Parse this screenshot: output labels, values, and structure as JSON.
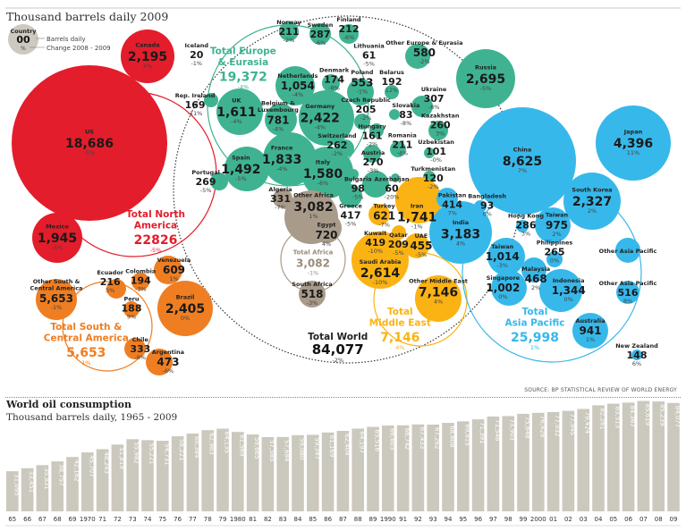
{
  "header": {
    "title": "Thousand barrels daily 2009"
  },
  "legend": {
    "country": "Country",
    "value": "00",
    "change": "%",
    "value_label": "Barrels daily",
    "change_label": "Change 2008 - 2009"
  },
  "colors": {
    "north_america": "#e31d2b",
    "south_america": "#ef7e22",
    "europe": "#3fb391",
    "africa": "#a99b89",
    "middle_east": "#fbb313",
    "asia_pacific": "#37b8ea",
    "legend": "#ccc9c0",
    "bars": "#cbc8bd"
  },
  "world": {
    "label": "Total World",
    "value": "84,077",
    "change": "-2%"
  },
  "regions": [
    {
      "key": "north_america",
      "label": "Total North America",
      "value": "22826",
      "change": "-5%"
    },
    {
      "key": "south_america",
      "label": "Total South & Central America",
      "value": "5,653",
      "change": "1%"
    },
    {
      "key": "europe",
      "label": "Total Europe & Eurasia",
      "value": "19,372",
      "change": "-4%"
    },
    {
      "key": "africa",
      "label": "Total Africa",
      "value": "3,082",
      "change": "-1%"
    },
    {
      "key": "middle_east",
      "label": "Total Middle East",
      "value": "7,146",
      "change": "4%"
    },
    {
      "key": "asia_pacific",
      "label": "Total Asia Pacific",
      "value": "25,998",
      "change": "1%"
    }
  ],
  "countries": [
    {
      "name": "US",
      "value": "18,686",
      "change": "-5%",
      "region": "north_america"
    },
    {
      "name": "Canada",
      "value": "2,195",
      "change": "4%",
      "region": "north_america"
    },
    {
      "name": "Mexico",
      "value": "1,945",
      "change": "-5%",
      "region": "north_america"
    },
    {
      "name": "Other South & Central America",
      "value": "5,653",
      "change": "-1%",
      "region": "south_america"
    },
    {
      "name": "Venezuela",
      "value": "609",
      "change": "1%",
      "region": "south_america"
    },
    {
      "name": "Colombia",
      "value": "194",
      "change": "-3%",
      "region": "south_america"
    },
    {
      "name": "Ecuador",
      "value": "216",
      "change": "5%",
      "region": "south_america"
    },
    {
      "name": "Peru",
      "value": "188",
      "change": "9%",
      "region": "south_america"
    },
    {
      "name": "Brazil",
      "value": "2,405",
      "change": "0%",
      "region": "south_america"
    },
    {
      "name": "Chile",
      "value": "333",
      "change": "-8%",
      "region": "south_america"
    },
    {
      "name": "Argentina",
      "value": "473",
      "change": "-6%",
      "region": "south_america"
    },
    {
      "name": "Iceland",
      "value": "20",
      "change": "-1%",
      "region": "europe"
    },
    {
      "name": "Rep. Ireland",
      "value": "169",
      "change": "-11%",
      "region": "europe"
    },
    {
      "name": "Norway",
      "value": "211",
      "change": "-2%",
      "region": "europe"
    },
    {
      "name": "Sweden",
      "value": "287",
      "change": "-6%",
      "region": "europe"
    },
    {
      "name": "Finland",
      "value": "212",
      "change": "-6%",
      "region": "europe"
    },
    {
      "name": "Netherlands",
      "value": "1,054",
      "change": "-4%",
      "region": "europe"
    },
    {
      "name": "Denmark",
      "value": "174",
      "change": "-8%",
      "region": "europe"
    },
    {
      "name": "UK",
      "value": "1,611",
      "change": "-4%",
      "region": "europe"
    },
    {
      "name": "Belgium & Luxembourg",
      "value": "781",
      "change": "-4%",
      "region": "europe"
    },
    {
      "name": "Germany",
      "value": "2,422",
      "change": "-4%",
      "region": "europe"
    },
    {
      "name": "Poland",
      "value": "553",
      "change": "-1%",
      "region": "europe"
    },
    {
      "name": "Czech Republic",
      "value": "205",
      "change": "-2%",
      "region": "europe"
    },
    {
      "name": "Hungary",
      "value": "161",
      "change": "-2%",
      "region": "europe"
    },
    {
      "name": "Switzerland",
      "value": "262",
      "change": "-2%",
      "region": "europe"
    },
    {
      "name": "France",
      "value": "1,833",
      "change": "-4%",
      "region": "europe"
    },
    {
      "name": "Spain",
      "value": "1,492",
      "change": "-5%",
      "region": "europe"
    },
    {
      "name": "Italy",
      "value": "1,580",
      "change": "-6%",
      "region": "europe"
    },
    {
      "name": "Portugal",
      "value": "269",
      "change": "-5%",
      "region": "europe"
    },
    {
      "name": "Lithuania",
      "value": "61",
      "change": "-5%",
      "region": "europe"
    },
    {
      "name": "Other Europe & Eurasia",
      "value": "580",
      "change": "-2%",
      "region": "europe"
    },
    {
      "name": "Belarus",
      "value": "192",
      "change": "12%",
      "region": "europe"
    },
    {
      "name": "Slovakia",
      "value": "83",
      "change": "-8%",
      "region": "europe"
    },
    {
      "name": "Ukraine",
      "value": "307",
      "change": "-8%",
      "region": "europe"
    },
    {
      "name": "Kazakhstan",
      "value": "260",
      "change": "3%",
      "region": "europe"
    },
    {
      "name": "Uzbekistan",
      "value": "101",
      "change": "-0%",
      "region": "europe"
    },
    {
      "name": "Turkmenistan",
      "value": "120",
      "change": "-2%",
      "region": "europe"
    },
    {
      "name": "Romania",
      "value": "211",
      "change": "-4%",
      "region": "europe"
    },
    {
      "name": "Austria",
      "value": "270",
      "change": "-3%",
      "region": "europe"
    },
    {
      "name": "Bulgaria",
      "value": "98",
      "change": "-5%",
      "region": "europe"
    },
    {
      "name": "Azerbaijan",
      "value": "60",
      "change": "-20%",
      "region": "europe"
    },
    {
      "name": "Turkey",
      "value": "621",
      "change": "-7%",
      "region": "europe"
    },
    {
      "name": "Greece",
      "value": "417",
      "change": "-5%",
      "region": "europe"
    },
    {
      "name": "Russia",
      "value": "2,695",
      "change": "-5%",
      "region": "europe"
    },
    {
      "name": "Algeria",
      "value": "331",
      "change": "-7%",
      "region": "africa"
    },
    {
      "name": "Other Africa",
      "value": "3,082",
      "change": "1%",
      "region": "africa"
    },
    {
      "name": "Egypt",
      "value": "720",
      "change": "4%",
      "region": "africa"
    },
    {
      "name": "South Africa",
      "value": "518",
      "change": "-3%",
      "region": "africa"
    },
    {
      "name": "Iran",
      "value": "1,741",
      "change": "-1%",
      "region": "middle_east"
    },
    {
      "name": "Kuwait",
      "value": "419",
      "change": "-10%",
      "region": "middle_east"
    },
    {
      "name": "Qatar",
      "value": "209",
      "change": "-5%",
      "region": "middle_east"
    },
    {
      "name": "UAE",
      "value": "455",
      "change": "-5%",
      "region": "middle_east"
    },
    {
      "name": "Saudi Arabia",
      "value": "2,614",
      "change": "-10%",
      "region": "middle_east"
    },
    {
      "name": "Other Middle East",
      "value": "7,146",
      "change": "4%",
      "region": "middle_east"
    },
    {
      "name": "Pakistan",
      "value": "414",
      "change": "7%",
      "region": "asia_pacific"
    },
    {
      "name": "Bangladesh",
      "value": "93",
      "change": "0%",
      "region": "asia_pacific"
    },
    {
      "name": "China",
      "value": "8,625",
      "change": "7%",
      "region": "asia_pacific"
    },
    {
      "name": "Japan",
      "value": "4,396",
      "change": "11%",
      "region": "asia_pacific"
    },
    {
      "name": "South Korea",
      "value": "2,327",
      "change": "2%",
      "region": "asia_pacific"
    },
    {
      "name": "India",
      "value": "3,183",
      "change": "4%",
      "region": "asia_pacific"
    },
    {
      "name": "Hong Kong",
      "value": "286",
      "change": "3%",
      "region": "asia_pacific"
    },
    {
      "name": "Taiwan",
      "value": "975",
      "change": "2%",
      "region": "asia_pacific"
    },
    {
      "name": "Taiwan",
      "value": "1,014",
      "change": "-3%",
      "region": "asia_pacific"
    },
    {
      "name": "Malaysia",
      "value": "468",
      "change": "2%",
      "region": "asia_pacific"
    },
    {
      "name": "Philippines",
      "value": "265",
      "change": "0%",
      "region": "asia_pacific"
    },
    {
      "name": "Singapore",
      "value": "1,002",
      "change": "0%",
      "region": "asia_pacific"
    },
    {
      "name": "Indonesia",
      "value": "1,344",
      "change": "0%",
      "region": "asia_pacific"
    },
    {
      "name": "Other Asia Pacific",
      "value": "",
      "change": "",
      "region": "asia_pacific"
    },
    {
      "name": "Other Asia Pacific",
      "value": "516",
      "change": "8%",
      "region": "asia_pacific"
    },
    {
      "name": "Australia",
      "value": "941",
      "change": "1%",
      "region": "asia_pacific"
    },
    {
      "name": "New Zealand",
      "value": "148",
      "change": "6%",
      "region": "asia_pacific"
    }
  ],
  "source": "SOURCE: BP STATISTICAL REVIEW OF WORLD ENERGY",
  "chart_data": {
    "type": "bar",
    "title": "World oil consumption",
    "subtitle": "Thousand barrels daily, 1965 - 2009",
    "categories": [
      "65",
      "66",
      "67",
      "68",
      "69",
      "1970",
      "71",
      "72",
      "73",
      "74",
      "75",
      "76",
      "77",
      "78",
      "79",
      "1980",
      "81",
      "82",
      "83",
      "84",
      "85",
      "86",
      "87",
      "88",
      "89",
      "1990",
      "91",
      "92",
      "93",
      "94",
      "95",
      "96",
      "97",
      "98",
      "99",
      "2000",
      "01",
      "02",
      "03",
      "04",
      "05",
      "06",
      "07",
      "08",
      "09"
    ],
    "values": [
      31095,
      33451,
      35831,
      38757,
      42162,
      45707,
      48243,
      51819,
      55982,
      55221,
      54731,
      58221,
      60384,
      62983,
      64135,
      61569,
      59665,
      57585,
      57684,
      59080,
      59347,
      61169,
      62404,
      64197,
      65516,
      66603,
      66742,
      67433,
      67262,
      68608,
      69815,
      71391,
      73546,
      73903,
      75648,
      76428,
      77032,
      77945,
      79424,
      82261,
      83513,
      84367,
      85619,
      85239,
      84077
    ],
    "labels": [
      "31,095",
      "33,451",
      "35,831",
      "38,757",
      "42,162",
      "45,707",
      "48,243",
      "51,819",
      "55,982",
      "55,221",
      "54,731",
      "58,221",
      "60,384",
      "62,983",
      "64,135",
      "61,569",
      "59,665",
      "57,585",
      "57,684",
      "59,080",
      "59,347",
      "61,169",
      "62,404",
      "64,197",
      "65,516",
      "66,603",
      "66,742",
      "67,433",
      "67,262",
      "68,608",
      "69,815",
      "71,391",
      "73,546",
      "73,903",
      "75,648",
      "76,428",
      "77,032",
      "77,945",
      "79,424",
      "82,261",
      "83,513",
      "84,367",
      "85,619",
      "85,239",
      "84,077"
    ],
    "grid": false,
    "legend": "none"
  }
}
